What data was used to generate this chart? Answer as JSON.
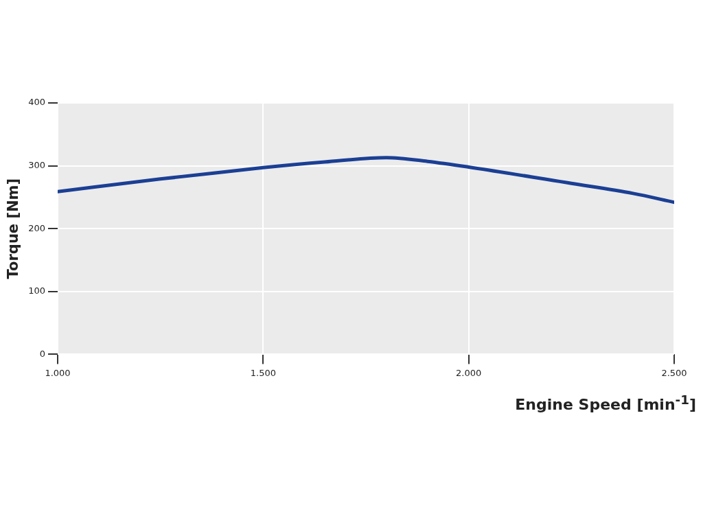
{
  "chart_data": {
    "type": "line",
    "xlabel": "Engine Speed [min$^{-1}$]",
    "ylabel": "Torque [Nm]",
    "x": [
      1000,
      1250,
      1500,
      1650,
      1800,
      1900,
      2000,
      2250,
      2400,
      2500
    ],
    "series": [
      {
        "color": "#1b3f94",
        "values": [
          259,
          279,
          297,
          306,
          313,
          307,
          298,
          272,
          256,
          242
        ]
      }
    ],
    "xlim": [
      1000,
      2500
    ],
    "xticks": [
      {
        "value": 1000,
        "label": "1.000"
      },
      {
        "value": 1500,
        "label": "1.500"
      },
      {
        "value": 2000,
        "label": "2.000"
      },
      {
        "value": 2500,
        "label": "2.500"
      }
    ],
    "ylim": [
      0,
      400
    ],
    "yticks": [
      0,
      100,
      200,
      300,
      400
    ],
    "grid": true,
    "legend": false,
    "marker": "none",
    "line_style": "solid"
  }
}
